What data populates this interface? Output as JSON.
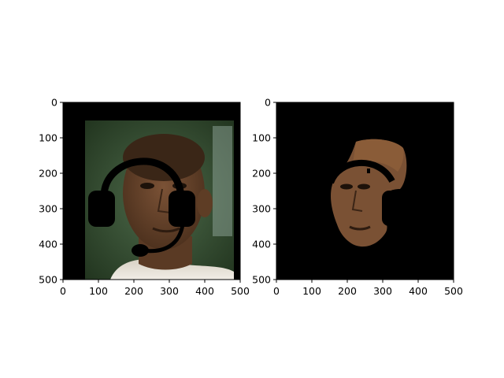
{
  "chart_data": [
    {
      "type": "image",
      "content": "face photo with black headset drawn over it",
      "xlim": [
        0,
        500
      ],
      "ylim": [
        500,
        0
      ],
      "x_ticks": [
        0,
        100,
        200,
        300,
        400,
        500
      ],
      "y_ticks": [
        0,
        100,
        200,
        300,
        400,
        500
      ],
      "x_tick_labels": [
        "0",
        "100",
        "200",
        "300",
        "400",
        "500"
      ],
      "y_tick_labels": [
        "0",
        "100",
        "200",
        "300",
        "400",
        "500"
      ]
    },
    {
      "type": "image",
      "content": "segmented face region on black background",
      "xlim": [
        0,
        500
      ],
      "ylim": [
        500,
        0
      ],
      "x_ticks": [
        0,
        100,
        200,
        300,
        400,
        500
      ],
      "y_ticks": [
        0,
        100,
        200,
        300,
        400,
        500
      ],
      "x_tick_labels": [
        "0",
        "100",
        "200",
        "300",
        "400",
        "500"
      ],
      "y_tick_labels": [
        "0",
        "100",
        "200",
        "300",
        "400",
        "500"
      ]
    }
  ]
}
